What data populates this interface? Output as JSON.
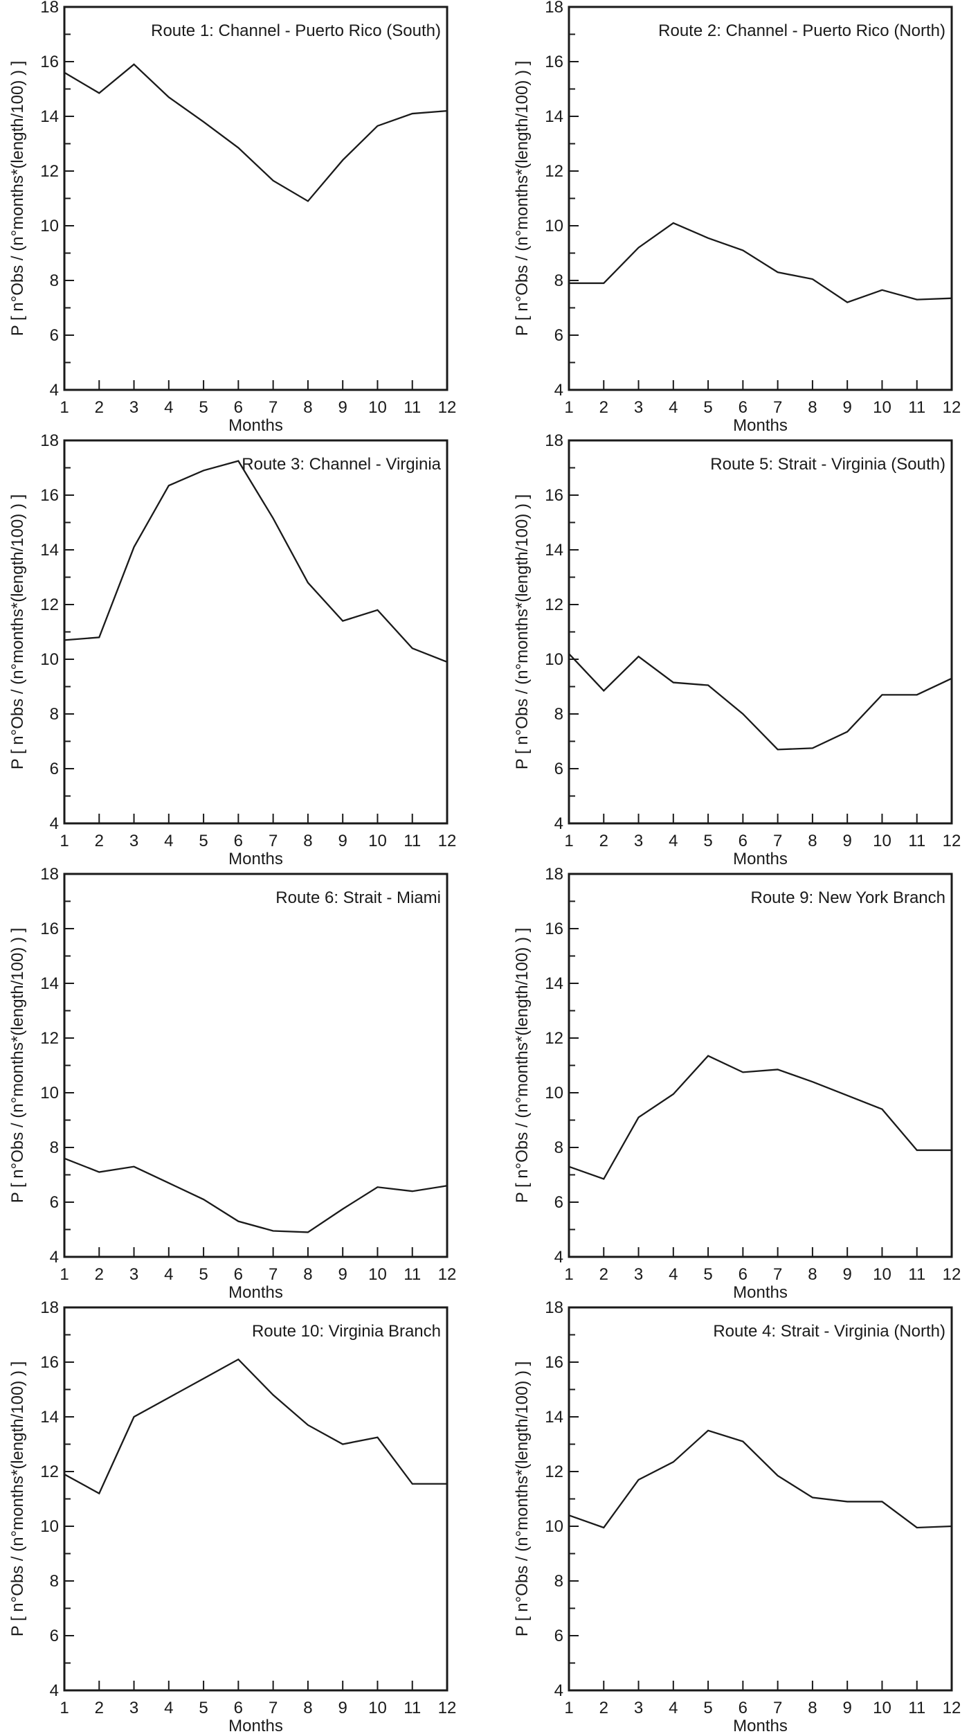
{
  "figure": {
    "background": "#ffffff",
    "text_color": "#1a1a1a",
    "line_color": "#1a1a1a"
  },
  "axis_defaults": {
    "xlabel": "Months",
    "ylabel": "P [ n°Obs / (n°months*(length/100) ) ]",
    "ylim": [
      4,
      18
    ],
    "xlim": [
      1,
      12
    ],
    "y_major_ticks": [
      4,
      6,
      8,
      10,
      12,
      14,
      16,
      18
    ],
    "y_minor_ticks": [
      5,
      7,
      9,
      11,
      13,
      15,
      17
    ],
    "x_ticks": [
      1,
      2,
      3,
      4,
      5,
      6,
      7,
      8,
      9,
      10,
      11,
      12
    ],
    "grid": "off",
    "legend": "none"
  },
  "chart_data": [
    {
      "type": "line",
      "title": "Route 1: Channel - Puerto Rico (South)",
      "x": [
        1,
        2,
        3,
        4,
        5,
        6,
        7,
        8,
        9,
        10,
        11,
        12
      ],
      "values": [
        15.6,
        14.85,
        15.9,
        14.7,
        13.8,
        12.85,
        11.65,
        10.9,
        12.4,
        13.65,
        14.1,
        14.2
      ],
      "xlabel": "Months",
      "ylabel": "P [ n°Obs / (n°months*(length/100) ) ]",
      "ylim": [
        4,
        18
      ]
    },
    {
      "type": "line",
      "title": "Route 2: Channel - Puerto Rico (North)",
      "x": [
        1,
        2,
        3,
        4,
        5,
        6,
        7,
        8,
        9,
        10,
        11,
        12
      ],
      "values": [
        7.9,
        7.9,
        9.2,
        10.1,
        9.55,
        9.1,
        8.3,
        8.05,
        7.2,
        7.65,
        7.3,
        7.35
      ],
      "xlabel": "Months",
      "ylabel": "P [ n°Obs / (n°months*(length/100) ) ]",
      "ylim": [
        4,
        18
      ]
    },
    {
      "type": "line",
      "title": "Route 3: Channel - Virginia",
      "x": [
        1,
        2,
        3,
        4,
        5,
        6,
        7,
        8,
        9,
        10,
        11,
        12
      ],
      "values": [
        10.7,
        10.8,
        14.1,
        16.35,
        16.9,
        17.25,
        15.15,
        12.8,
        11.4,
        11.8,
        10.4,
        9.9
      ],
      "xlabel": "Months",
      "ylabel": "P [ n°Obs / (n°months*(length/100) ) ]",
      "ylim": [
        4,
        18
      ]
    },
    {
      "type": "line",
      "title": "Route 5: Strait - Virginia (South)",
      "x": [
        1,
        2,
        3,
        4,
        5,
        6,
        7,
        8,
        9,
        10,
        11,
        12
      ],
      "values": [
        10.2,
        8.85,
        10.1,
        9.15,
        9.05,
        8.0,
        6.7,
        6.75,
        7.35,
        8.7,
        8.7,
        9.3
      ],
      "xlabel": "Months",
      "ylabel": "P [ n°Obs / (n°months*(length/100) ) ]",
      "ylim": [
        4,
        18
      ]
    },
    {
      "type": "line",
      "title": "Route 6: Strait - Miami",
      "x": [
        1,
        2,
        3,
        4,
        5,
        6,
        7,
        8,
        9,
        10,
        11,
        12
      ],
      "values": [
        7.6,
        7.1,
        7.3,
        6.7,
        6.1,
        5.3,
        4.95,
        4.9,
        5.75,
        6.55,
        6.4,
        6.6
      ],
      "xlabel": "Months",
      "ylabel": "P [ n°Obs / (n°months*(length/100) ) ]",
      "ylim": [
        4,
        18
      ]
    },
    {
      "type": "line",
      "title": "Route 9: New York Branch",
      "x": [
        1,
        2,
        3,
        4,
        5,
        6,
        7,
        8,
        9,
        10,
        11,
        12
      ],
      "values": [
        7.3,
        6.85,
        9.1,
        9.95,
        11.35,
        10.75,
        10.85,
        10.4,
        9.9,
        9.4,
        7.9,
        7.9
      ],
      "xlabel": "Months",
      "ylabel": "P [ n°Obs / (n°months*(length/100) ) ]",
      "ylim": [
        4,
        18
      ]
    },
    {
      "type": "line",
      "title": "Route 10: Virginia Branch",
      "x": [
        1,
        2,
        3,
        4,
        5,
        6,
        7,
        8,
        9,
        10,
        11,
        12
      ],
      "values": [
        11.9,
        11.2,
        14.0,
        14.7,
        15.4,
        16.1,
        14.8,
        13.7,
        13.0,
        13.25,
        11.55,
        11.55
      ],
      "xlabel": "Months",
      "ylabel": "P [ n°Obs / (n°months*(length/100) ) ]",
      "ylim": [
        4,
        18
      ]
    },
    {
      "type": "line",
      "title": "Route 4: Strait - Virginia (North)",
      "x": [
        1,
        2,
        3,
        4,
        5,
        6,
        7,
        8,
        9,
        10,
        11,
        12
      ],
      "values": [
        10.4,
        9.95,
        11.7,
        12.35,
        13.5,
        13.1,
        11.85,
        11.05,
        10.9,
        10.9,
        9.95,
        10.0
      ],
      "xlabel": "Months",
      "ylabel": "P [ n°Obs / (n°months*(length/100) ) ]",
      "ylim": [
        4,
        18
      ]
    }
  ]
}
